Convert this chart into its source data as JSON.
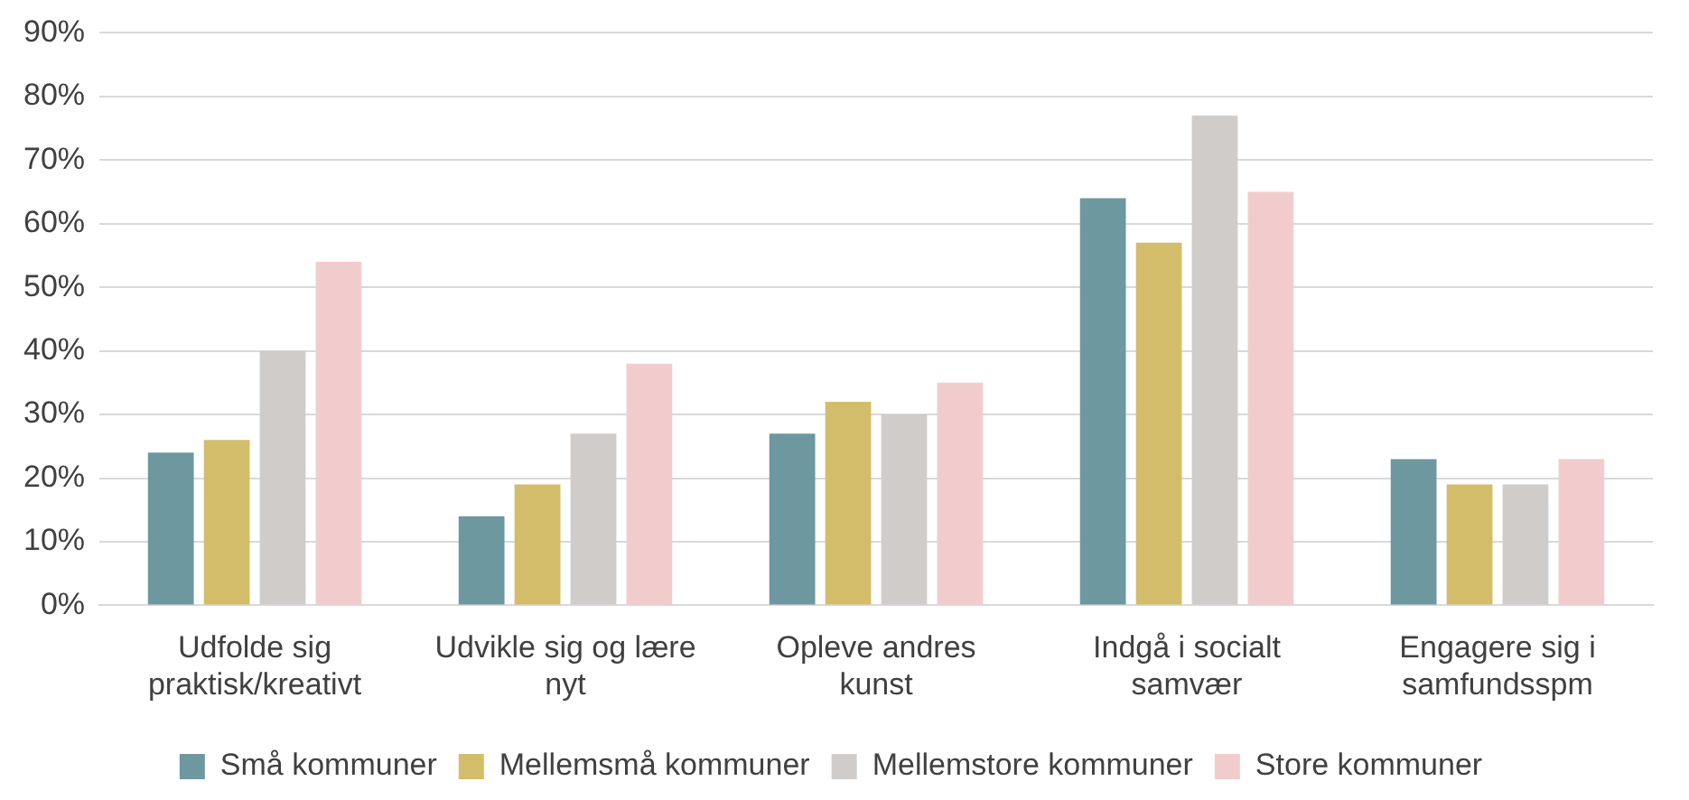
{
  "chart_data": {
    "type": "bar",
    "categories": [
      "Udfolde sig praktisk/kreativt",
      "Udvikle sig og lære nyt",
      "Opleve andres kunst",
      "Indgå i socialt samvær",
      "Engagere sig i samfundsspm"
    ],
    "series": [
      {
        "name": "Små kommuner",
        "color": "#6d98a0",
        "values": [
          24,
          14,
          27,
          64,
          23
        ]
      },
      {
        "name": "Mellemsmå kommuner",
        "color": "#d4bd6a",
        "values": [
          26,
          19,
          32,
          57,
          19
        ]
      },
      {
        "name": "Mellemstore kommuner",
        "color": "#d0ccc9",
        "values": [
          40,
          27,
          30,
          77,
          19
        ]
      },
      {
        "name": "Store kommuner",
        "color": "#f2cccc",
        "values": [
          54,
          38,
          35,
          65,
          23
        ]
      }
    ],
    "ylim": [
      0,
      90
    ],
    "yticks": [
      {
        "value": 0,
        "label": "0%"
      },
      {
        "value": 10,
        "label": "10%"
      },
      {
        "value": 20,
        "label": "20%"
      },
      {
        "value": 30,
        "label": "30%"
      },
      {
        "value": 40,
        "label": "40%"
      },
      {
        "value": 50,
        "label": "50%"
      },
      {
        "value": 60,
        "label": "60%"
      },
      {
        "value": 70,
        "label": "70%"
      },
      {
        "value": 80,
        "label": "80%"
      },
      {
        "value": 90,
        "label": "90%"
      }
    ],
    "grid": "y",
    "legend": "bottom"
  }
}
